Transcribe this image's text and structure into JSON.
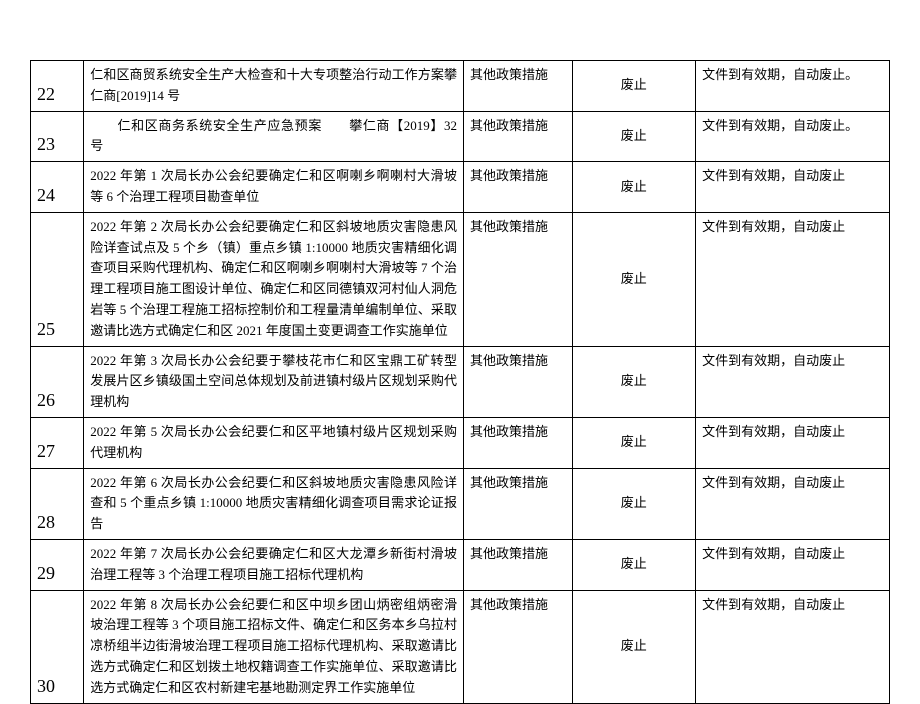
{
  "rows": [
    {
      "num": "22",
      "desc": "仁和区商贸系统安全生产大检查和十大专项整治行动工作方案攀仁商[2019]14 号",
      "type": "其他政策措施",
      "status": "废止",
      "note": "文件到有效期，自动废止。"
    },
    {
      "num": "23",
      "desc": "　　仁和区商务系统安全生产应急预案　　攀仁商【2019】32 号",
      "type": "其他政策措施",
      "status": "废止",
      "note": "文件到有效期，自动废止。"
    },
    {
      "num": "24",
      "desc": "2022 年第 1 次局长办公会纪要确定仁和区啊喇乡啊喇村大滑坡等 6 个治理工程项目勘查单位",
      "type": "其他政策措施",
      "status": "废止",
      "note": "文件到有效期，自动废止"
    },
    {
      "num": "25",
      "desc": "2022 年第 2 次局长办公会纪要确定仁和区斜坡地质灾害隐患风险详查试点及 5 个乡（镇）重点乡镇 1:10000 地质灾害精细化调查项目采购代理机构、确定仁和区啊喇乡啊喇村大滑坡等 7 个治理工程项目施工图设计单位、确定仁和区同德镇双河村仙人洞危岩等 5 个治理工程施工招标控制价和工程量清单编制单位、采取邀请比选方式确定仁和区 2021 年度国土变更调查工作实施单位",
      "type": "其他政策措施",
      "status": "废止",
      "note": "文件到有效期，自动废止"
    },
    {
      "num": "26",
      "desc": "2022 年第 3 次局长办公会纪要于攀枝花市仁和区宝鼎工矿转型发展片区乡镇级国土空间总体规划及前进镇村级片区规划采购代理机构",
      "type": "其他政策措施",
      "status": "废止",
      "note": "文件到有效期，自动废止"
    },
    {
      "num": "27",
      "desc": "2022 年第 5 次局长办公会纪要仁和区平地镇村级片区规划采购代理机构",
      "type": "其他政策措施",
      "status": "废止",
      "note": "文件到有效期，自动废止"
    },
    {
      "num": "28",
      "desc": "2022 年第 6 次局长办公会纪要仁和区斜坡地质灾害隐患风险详查和 5 个重点乡镇 1:10000 地质灾害精细化调查项目需求论证报告",
      "type": "其他政策措施",
      "status": "废止",
      "note": "文件到有效期，自动废止"
    },
    {
      "num": "29",
      "desc": "2022 年第 7 次局长办公会纪要确定仁和区大龙潭乡新街村滑坡治理工程等 3 个治理工程项目施工招标代理机构",
      "type": "其他政策措施",
      "status": "废止",
      "note": "文件到有效期，自动废止"
    },
    {
      "num": "30",
      "desc": "2022 年第 8 次局长办公会纪要仁和区中坝乡团山炳密组炳密滑坡治理工程等 3 个项目施工招标文件、确定仁和区务本乡乌拉村凉桥组半边街滑坡治理工程项目施工招标代理机构、采取邀请比选方式确定仁和区划拨土地权籍调查工作实施单位、采取邀请比选方式确定仁和区农村新建宅基地勘测定界工作实施单位",
      "type": "其他政策措施",
      "status": "废止",
      "note": "文件到有效期，自动废止"
    }
  ]
}
